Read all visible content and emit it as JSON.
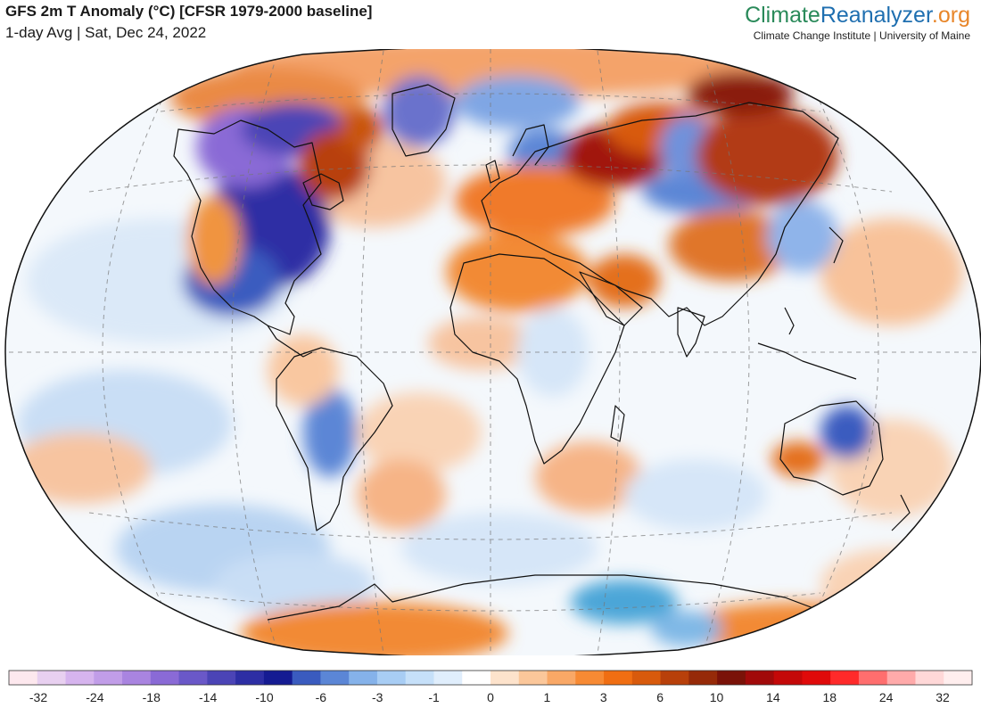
{
  "header": {
    "title": "GFS 2m T Anomaly (°C) [CFSR 1979-2000 baseline]",
    "subtitle": "1-day Avg | Sat, Dec 24, 2022"
  },
  "brand": {
    "name_part1": "Climate",
    "name_part2": "Reanalyzer",
    "name_part3": ".org",
    "subtitle": "Climate Change Institute | University of Maine"
  },
  "map": {
    "projection": "Winkel Tripel",
    "variable": "2m temperature anomaly",
    "units": "°C",
    "regions": [
      {
        "name": "central/eastern north america",
        "anomaly": -14
      },
      {
        "name": "western canada arctic",
        "anomaly": -18
      },
      {
        "name": "eastern canada / hudson",
        "anomaly": 10
      },
      {
        "name": "greenland",
        "anomaly": -8
      },
      {
        "name": "western russia",
        "anomaly": 14
      },
      {
        "name": "eastern siberia",
        "anomaly": 12
      },
      {
        "name": "central asia",
        "anomaly": -6
      },
      {
        "name": "china",
        "anomaly": 6
      },
      {
        "name": "europe",
        "anomaly": 5
      },
      {
        "name": "north africa / middle east",
        "anomaly": 5
      },
      {
        "name": "australia interior",
        "anomaly": -6
      },
      {
        "name": "western australia",
        "anomaly": 4
      },
      {
        "name": "southern south america",
        "anomaly": -6
      },
      {
        "name": "antarctica coast",
        "anomaly": 5
      },
      {
        "name": "southern ocean",
        "anomaly": -2
      }
    ]
  },
  "legend": {
    "colors": [
      "#fde8ee",
      "#e8d0f0",
      "#d6b4ee",
      "#c19de8",
      "#a984e0",
      "#8a6ad6",
      "#6a58c8",
      "#4b44b6",
      "#2d2ea4",
      "#151b92",
      "#3a5bbf",
      "#5b86d6",
      "#85b2ea",
      "#a8cdf4",
      "#c6e0f9",
      "#e0eefc",
      "#ffffff",
      "#fde3cc",
      "#fbc79a",
      "#f9a866",
      "#f78a33",
      "#f06e12",
      "#d85a0c",
      "#b8400a",
      "#962a08",
      "#7a1208",
      "#a10a0a",
      "#c40808",
      "#e00a0a",
      "#ff2a2a",
      "#ff6e6e",
      "#ffaaaa",
      "#ffd8d8",
      "#ffeeee"
    ],
    "labels": [
      "-32",
      "-24",
      "-18",
      "-14",
      "-10",
      "-6",
      "-3",
      "-1",
      "0",
      "1",
      "3",
      "6",
      "10",
      "14",
      "18",
      "24",
      "32"
    ]
  }
}
